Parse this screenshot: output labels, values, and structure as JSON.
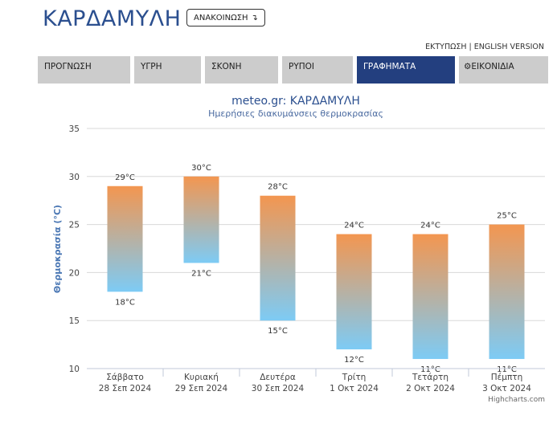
{
  "header": {
    "city": "ΚΑΡΔΑΜΥΛΗ",
    "announce_label": "ΑΝΑΚΟΙΝΩΣΗ",
    "announce_icon": "arrow-down-right-icon",
    "print_link": "ΕΚΤΥΠΩΣΗ",
    "separator": "|",
    "english_link": "ENGLISH VERSION"
  },
  "tabs": [
    {
      "label": "ΠΡΟΓΝΩΣΗ",
      "active": false
    },
    {
      "label": "ΥΓΡΗ",
      "active": false
    },
    {
      "label": "ΣΚΟΝΗ",
      "active": false
    },
    {
      "label": "ΡΥΠΟΙ",
      "active": false
    },
    {
      "label": "ΓΡΑΦΗΜΑΤΑ",
      "active": true
    },
    {
      "label": "ΕΙΚΟΝΙΔΙΑ",
      "active": false,
      "icon": "gear-icon"
    }
  ],
  "colors": {
    "accent": "#233f7f",
    "title": "#2b4f8f",
    "bar_top": "#f39650",
    "bar_bottom": "#7dcbf5",
    "tab_bg": "#cccccc"
  },
  "chart_data": {
    "type": "columnrange",
    "title": "meteo.gr: ΚΑΡΔΑΜΥΛΗ",
    "subtitle": "Ημερήσιες διακυμάνσεις θερμοκρασίας",
    "ylabel": "Θερμοκρασία (°C)",
    "ylim": [
      10,
      35
    ],
    "yticks": [
      10,
      15,
      20,
      25,
      30,
      35
    ],
    "unit": "°C",
    "categories": [
      {
        "day": "Σάββατο",
        "date": "28 Σεπ 2024"
      },
      {
        "day": "Κυριακή",
        "date": "29 Σεπ 2024"
      },
      {
        "day": "Δευτέρα",
        "date": "30 Σεπ 2024"
      },
      {
        "day": "Τρίτη",
        "date": "1 Οκτ 2024"
      },
      {
        "day": "Τετάρτη",
        "date": "2 Οκτ 2024"
      },
      {
        "day": "Πέμπτη",
        "date": "3 Οκτ 2024"
      }
    ],
    "series": [
      {
        "low": [
          18,
          21,
          15,
          12,
          11,
          11
        ],
        "high": [
          29,
          30,
          28,
          24,
          24,
          25
        ]
      }
    ],
    "credit": "Highcharts.com"
  }
}
